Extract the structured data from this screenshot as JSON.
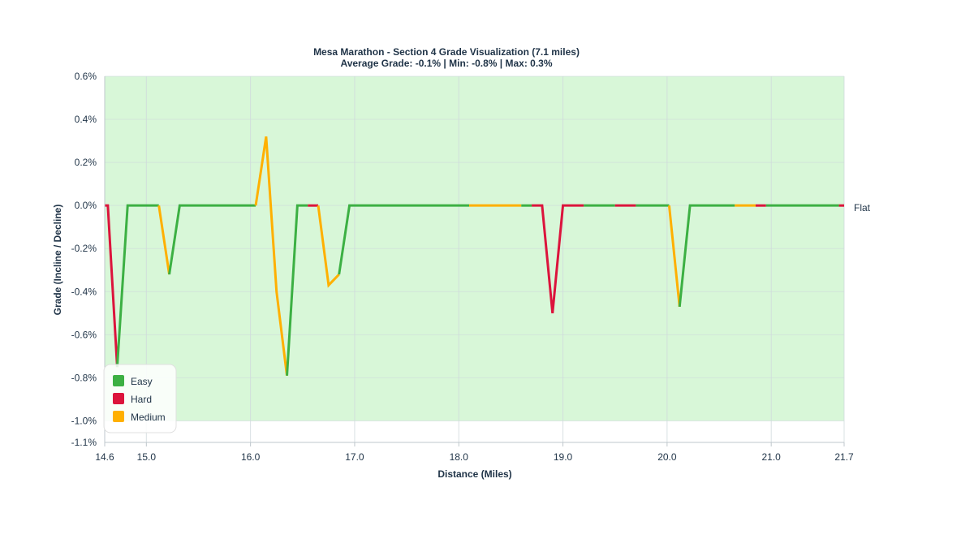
{
  "chart_data": {
    "type": "line",
    "title": "Mesa Marathon - Section 4 Grade Visualization (7.1 miles)",
    "subtitle": "Average Grade: -0.1% | Min: -0.8% | Max: 0.3%",
    "xlabel": "Distance (Miles)",
    "ylabel": "Grade (Incline / Decline)",
    "xlim": [
      14.6,
      21.7
    ],
    "ylim": [
      -1.1,
      0.6
    ],
    "x_ticks": [
      14.6,
      15.0,
      16.0,
      17.0,
      18.0,
      19.0,
      20.0,
      21.0,
      21.7
    ],
    "x_tick_labels": [
      "14.6",
      "15.0",
      "16.0",
      "17.0",
      "18.0",
      "19.0",
      "20.0",
      "21.0",
      "21.7"
    ],
    "y_ticks": [
      0.6,
      0.4,
      0.2,
      0.0,
      -0.2,
      -0.4,
      -0.6,
      -0.8,
      -1.0,
      -1.1
    ],
    "y_tick_labels": [
      "0.6%",
      "0.4%",
      "0.2%",
      "0.0%",
      "-0.2%",
      "-0.4%",
      "-0.6%",
      "-0.8%",
      "-1.0%",
      "-1.1%"
    ],
    "grid": true,
    "background_band": {
      "from": -1.0,
      "to": 0.6,
      "color": "#d8f7d8"
    },
    "reference_lines": [
      {
        "y": 0.0,
        "label": "Flat"
      }
    ],
    "legend_position": "bottom-left",
    "legend": [
      {
        "name": "Easy",
        "color": "#3cb043"
      },
      {
        "name": "Hard",
        "color": "#dc143c"
      },
      {
        "name": "Medium",
        "color": "#ffb000"
      }
    ],
    "colors": {
      "easy": "#3cb043",
      "hard": "#dc143c",
      "medium": "#ffb000"
    },
    "segments": [
      {
        "difficulty": "hard",
        "points": [
          [
            14.6,
            0.0
          ],
          [
            14.63,
            0.0
          ],
          [
            14.72,
            -0.75
          ]
        ]
      },
      {
        "difficulty": "easy",
        "points": [
          [
            14.72,
            -0.75
          ],
          [
            14.82,
            0.0
          ],
          [
            15.12,
            0.0
          ]
        ]
      },
      {
        "difficulty": "medium",
        "points": [
          [
            15.12,
            0.0
          ],
          [
            15.22,
            -0.32
          ]
        ]
      },
      {
        "difficulty": "easy",
        "points": [
          [
            15.22,
            -0.32
          ],
          [
            15.32,
            0.0
          ],
          [
            16.05,
            0.0
          ]
        ]
      },
      {
        "difficulty": "medium",
        "points": [
          [
            16.05,
            0.0
          ],
          [
            16.15,
            0.32
          ],
          [
            16.25,
            -0.4
          ],
          [
            16.35,
            -0.79
          ]
        ]
      },
      {
        "difficulty": "easy",
        "points": [
          [
            16.35,
            -0.79
          ],
          [
            16.45,
            0.0
          ],
          [
            16.55,
            0.0
          ]
        ]
      },
      {
        "difficulty": "hard",
        "points": [
          [
            16.55,
            0.0
          ],
          [
            16.65,
            0.0
          ]
        ]
      },
      {
        "difficulty": "medium",
        "points": [
          [
            16.65,
            0.0
          ],
          [
            16.75,
            -0.37
          ],
          [
            16.85,
            -0.32
          ]
        ]
      },
      {
        "difficulty": "easy",
        "points": [
          [
            16.85,
            -0.32
          ],
          [
            16.95,
            0.0
          ],
          [
            18.1,
            0.0
          ]
        ]
      },
      {
        "difficulty": "medium",
        "points": [
          [
            18.1,
            0.0
          ],
          [
            18.6,
            0.0
          ]
        ]
      },
      {
        "difficulty": "easy",
        "points": [
          [
            18.6,
            0.0
          ],
          [
            18.7,
            0.0
          ]
        ]
      },
      {
        "difficulty": "hard",
        "points": [
          [
            18.7,
            0.0
          ],
          [
            18.8,
            0.0
          ],
          [
            18.9,
            -0.5
          ],
          [
            19.0,
            0.0
          ],
          [
            19.2,
            0.0
          ]
        ]
      },
      {
        "difficulty": "easy",
        "points": [
          [
            19.2,
            0.0
          ],
          [
            19.5,
            0.0
          ]
        ]
      },
      {
        "difficulty": "hard",
        "points": [
          [
            19.5,
            0.0
          ],
          [
            19.7,
            0.0
          ]
        ]
      },
      {
        "difficulty": "easy",
        "points": [
          [
            19.7,
            0.0
          ],
          [
            20.02,
            0.0
          ]
        ]
      },
      {
        "difficulty": "medium",
        "points": [
          [
            20.02,
            0.0
          ],
          [
            20.12,
            -0.47
          ]
        ]
      },
      {
        "difficulty": "easy",
        "points": [
          [
            20.12,
            -0.47
          ],
          [
            20.22,
            0.0
          ],
          [
            20.65,
            0.0
          ]
        ]
      },
      {
        "difficulty": "medium",
        "points": [
          [
            20.65,
            0.0
          ],
          [
            20.85,
            0.0
          ]
        ]
      },
      {
        "difficulty": "hard",
        "points": [
          [
            20.85,
            0.0
          ],
          [
            20.95,
            0.0
          ]
        ]
      },
      {
        "difficulty": "easy",
        "points": [
          [
            20.95,
            0.0
          ],
          [
            21.65,
            0.0
          ]
        ]
      },
      {
        "difficulty": "hard",
        "points": [
          [
            21.65,
            0.0
          ],
          [
            21.7,
            0.0
          ]
        ]
      }
    ]
  }
}
